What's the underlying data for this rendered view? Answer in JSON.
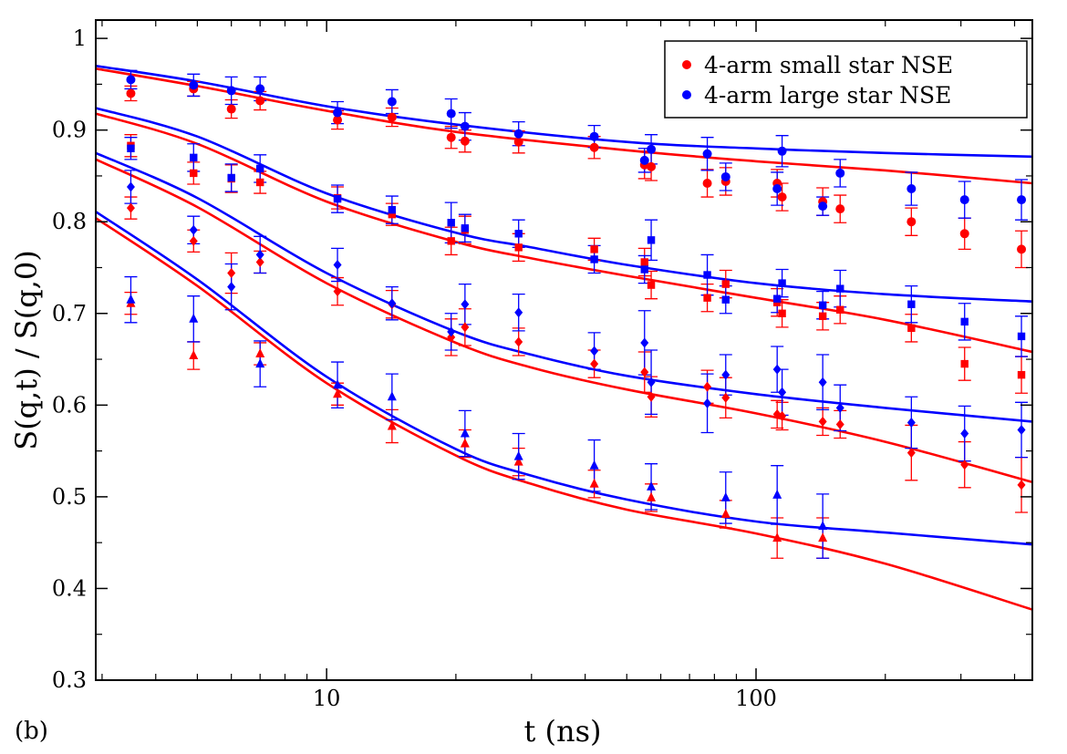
{
  "chart_data": {
    "type": "scatter",
    "panel_label": "(b)",
    "xlabel": "t (ns)",
    "ylabel": "S(q,t) / S(q,0)",
    "x_scale": "log",
    "xlim": [
      2.9,
      440
    ],
    "ylim": [
      0.3,
      1.02
    ],
    "x_ticks": [
      10,
      100
    ],
    "x_tick_labels": [
      "10",
      "100"
    ],
    "y_ticks": [
      0.3,
      0.4,
      0.5,
      0.6,
      0.7,
      0.8,
      0.9,
      1.0
    ],
    "y_tick_labels": [
      "0.3",
      "0.4",
      "0.5",
      "0.6",
      "0.7",
      "0.8",
      "0.9",
      "1"
    ],
    "grid": false,
    "legend_position": "top-right",
    "legend": [
      {
        "label": "4-arm small star NSE",
        "color": "#ff0000"
      },
      {
        "label": "4-arm large star NSE",
        "color": "#0000ff"
      }
    ],
    "series": [
      {
        "star": "small",
        "marker": "circle",
        "color": "#ff0000",
        "x": [
          3.5,
          4.9,
          6.0,
          7.0,
          10.6,
          14.2,
          19.5,
          21.0,
          28.0,
          42.0,
          55.0,
          57.0,
          77.0,
          85.0,
          112.0,
          115.0,
          143.0,
          157.0,
          230.0,
          306.0,
          415.0
        ],
        "y": [
          0.94,
          0.945,
          0.923,
          0.932,
          0.911,
          0.914,
          0.892,
          0.888,
          0.887,
          0.881,
          0.862,
          0.86,
          0.842,
          0.844,
          0.842,
          0.827,
          0.822,
          0.814,
          0.8,
          0.787,
          0.77
        ],
        "err": [
          0.008,
          0.008,
          0.01,
          0.01,
          0.01,
          0.01,
          0.012,
          0.012,
          0.012,
          0.012,
          0.015,
          0.015,
          0.015,
          0.015,
          0.015,
          0.015,
          0.015,
          0.015,
          0.015,
          0.017,
          0.02
        ]
      },
      {
        "star": "large",
        "marker": "circle",
        "color": "#0000ff",
        "x": [
          3.5,
          4.9,
          6.0,
          7.0,
          10.6,
          14.2,
          19.5,
          21.0,
          28.0,
          42.0,
          55.0,
          57.0,
          77.0,
          85.0,
          112.0,
          115.0,
          143.0,
          157.0,
          230.0,
          306.0,
          415.0
        ],
        "y": [
          0.955,
          0.949,
          0.943,
          0.945,
          0.919,
          0.931,
          0.918,
          0.904,
          0.896,
          0.893,
          0.867,
          0.879,
          0.874,
          0.849,
          0.836,
          0.877,
          0.817,
          0.853,
          0.836,
          0.824,
          0.824
        ],
        "err": [
          0.01,
          0.012,
          0.015,
          0.013,
          0.012,
          0.013,
          0.016,
          0.015,
          0.013,
          0.012,
          0.013,
          0.016,
          0.018,
          0.015,
          0.018,
          0.017,
          0.01,
          0.015,
          0.018,
          0.02,
          0.022
        ]
      },
      {
        "star": "small",
        "marker": "square",
        "color": "#ff0000",
        "x": [
          3.5,
          4.9,
          6.0,
          7.0,
          10.6,
          14.2,
          19.5,
          21.0,
          28.0,
          42.0,
          55.0,
          57.0,
          77.0,
          85.0,
          112.0,
          115.0,
          143.0,
          157.0,
          230.0,
          306.0,
          415.0
        ],
        "y": [
          0.883,
          0.853,
          0.847,
          0.843,
          0.826,
          0.808,
          0.779,
          0.791,
          0.772,
          0.77,
          0.756,
          0.731,
          0.717,
          0.732,
          0.712,
          0.7,
          0.697,
          0.704,
          0.684,
          0.645,
          0.633
        ],
        "err": [
          0.012,
          0.012,
          0.015,
          0.012,
          0.012,
          0.012,
          0.015,
          0.015,
          0.015,
          0.012,
          0.015,
          0.015,
          0.015,
          0.015,
          0.015,
          0.015,
          0.015,
          0.015,
          0.015,
          0.018,
          0.02
        ]
      },
      {
        "star": "large",
        "marker": "square",
        "color": "#0000ff",
        "x": [
          3.5,
          4.9,
          6.0,
          7.0,
          10.6,
          14.2,
          19.5,
          21.0,
          28.0,
          42.0,
          55.0,
          57.0,
          77.0,
          85.0,
          112.0,
          115.0,
          143.0,
          157.0,
          230.0,
          306.0,
          415.0
        ],
        "y": [
          0.88,
          0.87,
          0.848,
          0.858,
          0.825,
          0.813,
          0.799,
          0.793,
          0.787,
          0.759,
          0.748,
          0.78,
          0.742,
          0.715,
          0.716,
          0.733,
          0.709,
          0.727,
          0.71,
          0.691,
          0.675
        ],
        "err": [
          0.012,
          0.015,
          0.015,
          0.015,
          0.015,
          0.015,
          0.022,
          0.015,
          0.015,
          0.015,
          0.015,
          0.022,
          0.022,
          0.015,
          0.015,
          0.015,
          0.015,
          0.02,
          0.02,
          0.02,
          0.022
        ]
      },
      {
        "star": "small",
        "marker": "diamond",
        "color": "#ff0000",
        "x": [
          3.5,
          4.9,
          6.0,
          7.0,
          10.6,
          14.2,
          19.5,
          21.0,
          28.0,
          42.0,
          55.0,
          57.0,
          77.0,
          85.0,
          112.0,
          115.0,
          143.0,
          157.0,
          230.0,
          306.0,
          415.0
        ],
        "y": [
          0.815,
          0.779,
          0.744,
          0.756,
          0.724,
          0.71,
          0.674,
          0.685,
          0.669,
          0.645,
          0.636,
          0.609,
          0.62,
          0.608,
          0.59,
          0.588,
          0.582,
          0.579,
          0.548,
          0.535,
          0.513
        ],
        "err": [
          0.012,
          0.012,
          0.022,
          0.012,
          0.015,
          0.015,
          0.02,
          0.02,
          0.015,
          0.015,
          0.022,
          0.022,
          0.018,
          0.022,
          0.015,
          0.015,
          0.015,
          0.015,
          0.03,
          0.025,
          0.03
        ]
      },
      {
        "star": "large",
        "marker": "diamond",
        "color": "#0000ff",
        "x": [
          3.5,
          4.9,
          6.0,
          7.0,
          10.6,
          14.2,
          19.5,
          21.0,
          28.0,
          42.0,
          55.0,
          57.0,
          77.0,
          85.0,
          112.0,
          115.0,
          143.0,
          157.0,
          230.0,
          306.0,
          415.0
        ],
        "y": [
          0.838,
          0.791,
          0.729,
          0.764,
          0.753,
          0.711,
          0.68,
          0.71,
          0.701,
          0.659,
          0.668,
          0.625,
          0.602,
          0.633,
          0.639,
          0.614,
          0.625,
          0.597,
          0.581,
          0.569,
          0.573
        ],
        "err": [
          0.018,
          0.015,
          0.025,
          0.02,
          0.018,
          0.018,
          0.02,
          0.022,
          0.02,
          0.02,
          0.035,
          0.035,
          0.032,
          0.022,
          0.025,
          0.025,
          0.03,
          0.025,
          0.028,
          0.03,
          0.03
        ]
      },
      {
        "star": "small",
        "marker": "triangle",
        "color": "#ff0000",
        "x": [
          3.5,
          4.9,
          7.0,
          10.6,
          14.2,
          21.0,
          28.0,
          42.0,
          57.0,
          85.0,
          112.0,
          143.0
        ],
        "y": [
          0.711,
          0.654,
          0.656,
          0.612,
          0.577,
          0.558,
          0.538,
          0.514,
          0.499,
          0.481,
          0.455,
          0.455
        ],
        "err": [
          0.012,
          0.015,
          0.012,
          0.012,
          0.018,
          0.015,
          0.015,
          0.015,
          0.015,
          0.015,
          0.022,
          0.022
        ]
      },
      {
        "star": "large",
        "marker": "triangle",
        "color": "#0000ff",
        "x": [
          3.5,
          4.9,
          7.0,
          10.6,
          14.2,
          21.0,
          28.0,
          42.0,
          57.0,
          85.0,
          112.0,
          143.0
        ],
        "y": [
          0.715,
          0.694,
          0.645,
          0.622,
          0.609,
          0.569,
          0.544,
          0.534,
          0.511,
          0.499,
          0.502,
          0.468
        ],
        "err": [
          0.025,
          0.025,
          0.025,
          0.025,
          0.025,
          0.025,
          0.025,
          0.028,
          0.025,
          0.028,
          0.032,
          0.035
        ]
      }
    ],
    "fit_lines": [
      {
        "star": "small",
        "color": "#ff0000",
        "x": [
          2.9,
          5,
          10,
          20,
          50,
          100,
          200,
          440
        ],
        "y": [
          0.967,
          0.948,
          0.921,
          0.898,
          0.878,
          0.866,
          0.856,
          0.842
        ]
      },
      {
        "star": "large",
        "color": "#0000ff",
        "x": [
          2.9,
          5,
          10,
          20,
          50,
          100,
          200,
          440
        ],
        "y": [
          0.97,
          0.953,
          0.926,
          0.906,
          0.887,
          0.88,
          0.875,
          0.871
        ]
      },
      {
        "star": "small",
        "color": "#ff0000",
        "x": [
          2.9,
          5,
          10,
          20,
          30,
          50,
          100,
          200,
          440
        ],
        "y": [
          0.918,
          0.885,
          0.822,
          0.778,
          0.76,
          0.741,
          0.717,
          0.693,
          0.658
        ]
      },
      {
        "star": "large",
        "color": "#0000ff",
        "x": [
          2.9,
          5,
          10,
          20,
          30,
          50,
          100,
          200,
          440
        ],
        "y": [
          0.924,
          0.893,
          0.831,
          0.788,
          0.772,
          0.753,
          0.733,
          0.721,
          0.713
        ]
      },
      {
        "star": "small",
        "color": "#ff0000",
        "x": [
          2.9,
          5,
          10,
          20,
          30,
          50,
          100,
          200,
          440
        ],
        "y": [
          0.868,
          0.816,
          0.733,
          0.668,
          0.641,
          0.617,
          0.591,
          0.56,
          0.516
        ]
      },
      {
        "star": "large",
        "color": "#0000ff",
        "x": [
          2.9,
          5,
          10,
          20,
          30,
          50,
          100,
          200,
          440
        ],
        "y": [
          0.875,
          0.826,
          0.744,
          0.68,
          0.655,
          0.632,
          0.612,
          0.597,
          0.582
        ]
      },
      {
        "star": "small",
        "color": "#ff0000",
        "x": [
          2.9,
          5,
          10,
          20,
          30,
          50,
          100,
          200,
          440
        ],
        "y": [
          0.804,
          0.73,
          0.624,
          0.545,
          0.514,
          0.486,
          0.46,
          0.427,
          0.377
        ]
      },
      {
        "star": "large",
        "color": "#0000ff",
        "x": [
          2.9,
          5,
          10,
          20,
          30,
          50,
          100,
          200,
          440
        ],
        "y": [
          0.811,
          0.737,
          0.631,
          0.552,
          0.523,
          0.497,
          0.473,
          0.461,
          0.448
        ]
      }
    ]
  }
}
